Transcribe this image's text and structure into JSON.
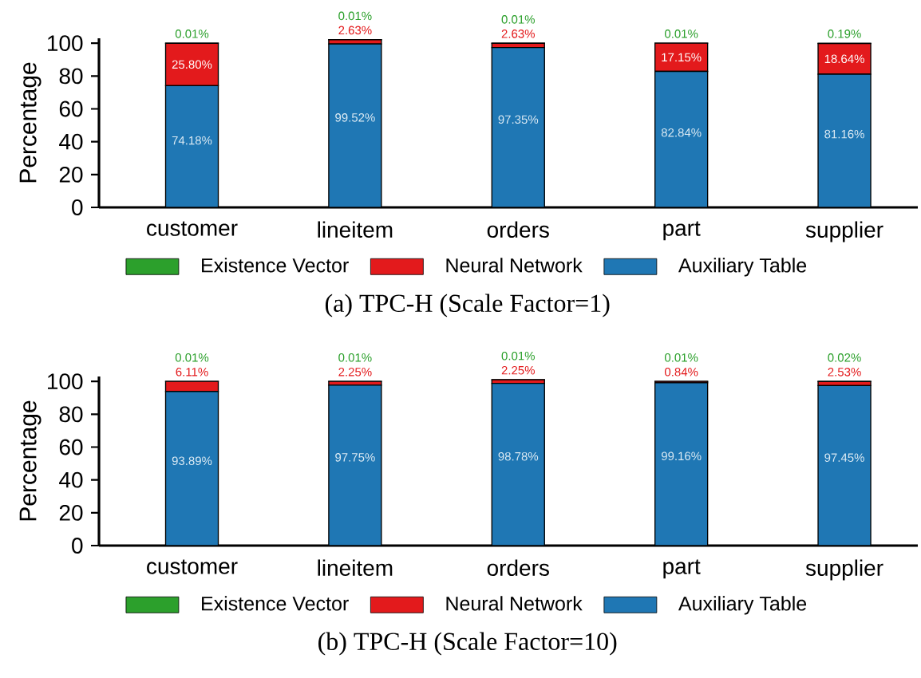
{
  "chart_data": [
    {
      "type": "bar",
      "stacked": true,
      "title": "(a) TPC-H (Scale Factor=1)",
      "ylabel": "Percentage",
      "categories": [
        "customer",
        "lineitem",
        "orders",
        "part",
        "supplier"
      ],
      "ylim": [
        0,
        103
      ],
      "yticks": [
        0,
        20,
        40,
        60,
        80,
        100
      ],
      "legend": "bottom",
      "series": [
        {
          "name": "Auxiliary Table",
          "color": "#1f77b4",
          "values": [
            74.18,
            99.52,
            97.35,
            82.84,
            81.16
          ],
          "value_labels": [
            "74.18%",
            "99.52%",
            "97.35%",
            "82.84%",
            "81.16%"
          ]
        },
        {
          "name": "Neural Network",
          "color": "#e31a1c",
          "values": [
            25.8,
            2.63,
            2.63,
            17.15,
            18.64
          ],
          "value_labels": [
            "25.80%",
            "2.63%",
            "2.63%",
            "17.15%",
            "18.64%"
          ]
        },
        {
          "name": "Existence Vector",
          "color": "#2ca02c",
          "values": [
            0.01,
            0.01,
            0.01,
            0.01,
            0.19
          ],
          "value_labels": [
            "0.01%",
            "0.01%",
            "0.01%",
            "0.01%",
            "0.19%"
          ]
        }
      ]
    },
    {
      "type": "bar",
      "stacked": true,
      "title": "(b) TPC-H (Scale Factor=10)",
      "ylabel": "Percentage",
      "categories": [
        "customer",
        "lineitem",
        "orders",
        "part",
        "supplier"
      ],
      "ylim": [
        0,
        103
      ],
      "yticks": [
        0,
        20,
        40,
        60,
        80,
        100
      ],
      "legend": "bottom",
      "series": [
        {
          "name": "Auxiliary Table",
          "color": "#1f77b4",
          "values": [
            93.89,
            97.75,
            98.78,
            99.16,
            97.45
          ],
          "value_labels": [
            "93.89%",
            "97.75%",
            "98.78%",
            "99.16%",
            "97.45%"
          ]
        },
        {
          "name": "Neural Network",
          "color": "#e31a1c",
          "values": [
            6.11,
            2.25,
            2.25,
            0.84,
            2.53
          ],
          "value_labels": [
            "6.11%",
            "2.25%",
            "2.25%",
            "0.84%",
            "2.53%"
          ]
        },
        {
          "name": "Existence Vector",
          "color": "#2ca02c",
          "values": [
            0.01,
            0.01,
            0.01,
            0.01,
            0.02
          ],
          "value_labels": [
            "0.01%",
            "0.01%",
            "0.01%",
            "0.01%",
            "0.02%"
          ]
        }
      ]
    }
  ]
}
